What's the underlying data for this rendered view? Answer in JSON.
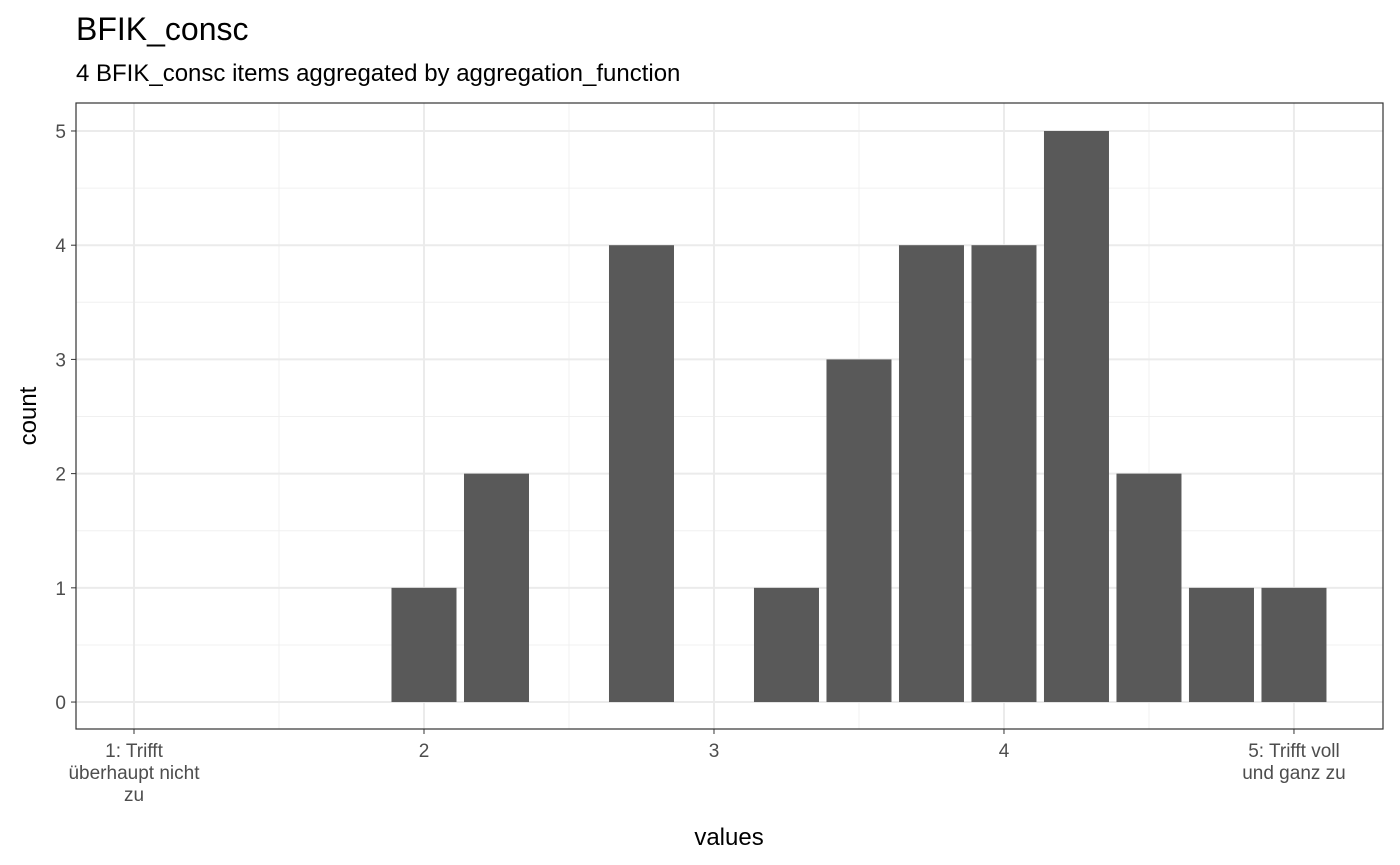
{
  "chart_data": {
    "type": "bar",
    "title": "BFIK_consc",
    "subtitle": "4 BFIK_consc items aggregated by aggregation_function",
    "x_label": "values",
    "y_label": "count",
    "x": [
      2,
      2.25,
      2.75,
      3.25,
      3.5,
      3.75,
      4,
      4.25,
      4.5,
      4.75,
      5
    ],
    "values": [
      1,
      2,
      4,
      1,
      3,
      4,
      4,
      5,
      2,
      1,
      1
    ],
    "color": "#595959",
    "xlim": [
      0.8,
      5.307
    ],
    "ylim": [
      -0.236,
      5.245
    ],
    "xticks": [
      {
        "value": 1,
        "label": "1: Trifft\nüberhaupt nicht\nzu"
      },
      2,
      3,
      4,
      {
        "value": 5,
        "label": "5: Trifft voll\nund ganz zu"
      }
    ],
    "yticks": [
      0,
      1,
      2,
      3,
      4,
      5
    ],
    "grid": true,
    "minor_grid": true
  }
}
